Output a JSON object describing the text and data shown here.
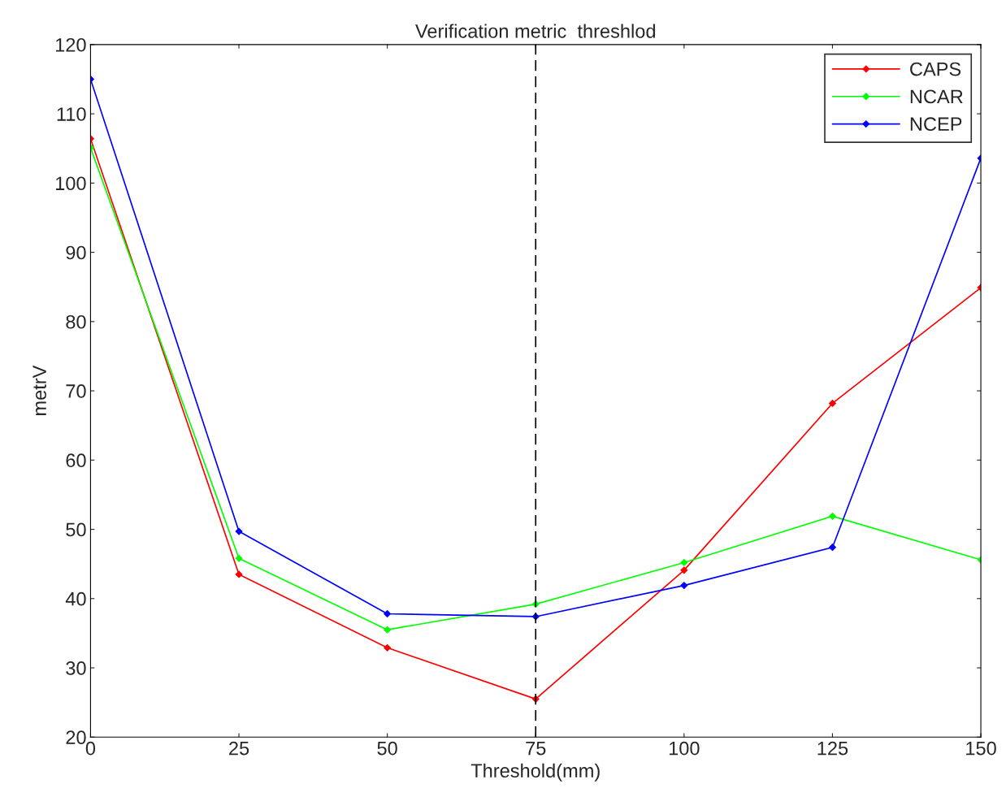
{
  "chart_data": {
    "type": "line",
    "title": "Verification metric  threshlod",
    "xlabel": "Threshold(mm)",
    "ylabel": "metrV",
    "x": [
      0,
      25,
      50,
      75,
      100,
      125,
      150
    ],
    "series": [
      {
        "name": "CAPS",
        "color": "#ff0000",
        "values": [
          106.4,
          43.5,
          32.9,
          25.5,
          44.1,
          68.2,
          84.9
        ]
      },
      {
        "name": "NCAR",
        "color": "#00ff00",
        "values": [
          105.1,
          45.8,
          35.5,
          39.2,
          45.2,
          51.9,
          45.6
        ]
      },
      {
        "name": "NCEP",
        "color": "#0000ff",
        "values": [
          115.0,
          49.7,
          37.8,
          37.4,
          41.9,
          47.4,
          103.6
        ]
      }
    ],
    "xlim": [
      0,
      150
    ],
    "xticks": [
      0,
      25,
      50,
      75,
      100,
      125,
      150
    ],
    "ylim": [
      20,
      120
    ],
    "yticks": [
      20,
      30,
      40,
      50,
      60,
      70,
      80,
      90,
      100,
      110,
      120
    ],
    "ref_lines": [
      {
        "axis": "x",
        "value": 75,
        "color": "#000000",
        "line_style": "dashed"
      }
    ],
    "grid": false,
    "legend": "top right",
    "marker": "diamond",
    "line_style": "solid"
  }
}
